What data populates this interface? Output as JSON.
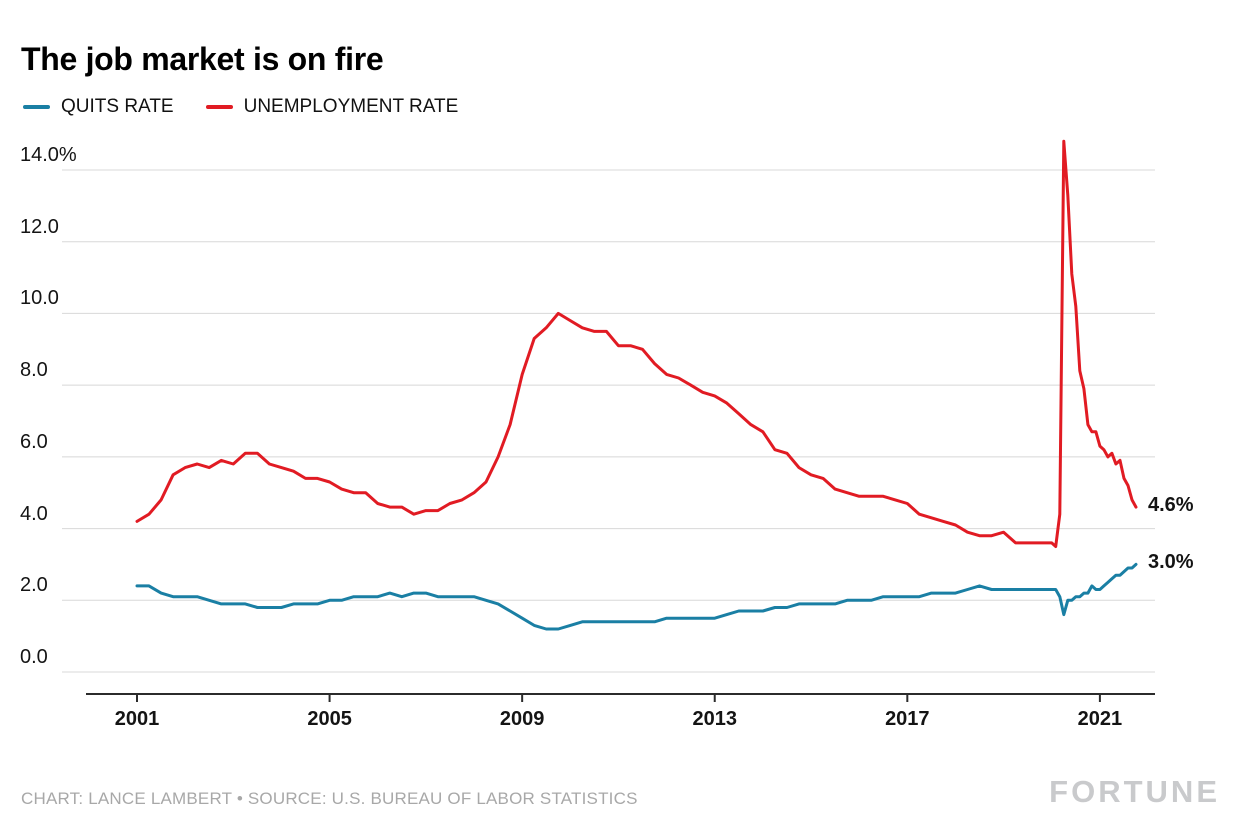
{
  "title": "The job market is on fire",
  "legend": [
    {
      "label": "QUITS RATE",
      "color": "#1a7fa4"
    },
    {
      "label": "UNEMPLOYMENT RATE",
      "color": "#e11b23"
    }
  ],
  "end_labels": {
    "unemployment": "4.6%",
    "quits": "3.0%"
  },
  "footer": {
    "credit": "CHART: LANCE LAMBERT • SOURCE: U.S. BUREAU OF LABOR STATISTICS",
    "brand": "FORTUNE"
  },
  "colors": {
    "grid": "#d8d8d8",
    "axis": "#2b2b2b"
  },
  "chart_data": {
    "type": "line",
    "title": "The job market is on fire",
    "xlabel": "",
    "ylabel": "",
    "grid": true,
    "legend_position": "top",
    "xlim": [
      2001,
      2021.75
    ],
    "ylim": [
      0,
      14.8
    ],
    "y_axis_scale": [
      0,
      14
    ],
    "x": [
      2001,
      2001.25,
      2001.5,
      2001.75,
      2002,
      2002.25,
      2002.5,
      2002.75,
      2003,
      2003.25,
      2003.5,
      2003.75,
      2004,
      2004.25,
      2004.5,
      2004.75,
      2005,
      2005.25,
      2005.5,
      2005.75,
      2006,
      2006.25,
      2006.5,
      2006.75,
      2007,
      2007.25,
      2007.5,
      2007.75,
      2008,
      2008.25,
      2008.5,
      2008.75,
      2009,
      2009.25,
      2009.5,
      2009.75,
      2010,
      2010.25,
      2010.5,
      2010.75,
      2011,
      2011.25,
      2011.5,
      2011.75,
      2012,
      2012.25,
      2012.5,
      2012.75,
      2013,
      2013.25,
      2013.5,
      2013.75,
      2014,
      2014.25,
      2014.5,
      2014.75,
      2015,
      2015.25,
      2015.5,
      2015.75,
      2016,
      2016.25,
      2016.5,
      2016.75,
      2017,
      2017.25,
      2017.5,
      2017.75,
      2018,
      2018.25,
      2018.5,
      2018.75,
      2019,
      2019.25,
      2019.5,
      2019.75,
      2020,
      2020.083,
      2020.167,
      2020.25,
      2020.333,
      2020.417,
      2020.5,
      2020.583,
      2020.667,
      2020.75,
      2020.833,
      2020.917,
      2021,
      2021.083,
      2021.167,
      2021.25,
      2021.333,
      2021.417,
      2021.5,
      2021.583,
      2021.667,
      2021.75
    ],
    "series": [
      {
        "name": "QUITS RATE",
        "color": "#1a7fa4",
        "end_label": "3.0%",
        "values": [
          2.4,
          2.4,
          2.2,
          2.1,
          2.1,
          2.1,
          2.0,
          1.9,
          1.9,
          1.9,
          1.8,
          1.8,
          1.8,
          1.9,
          1.9,
          1.9,
          2.0,
          2.0,
          2.1,
          2.1,
          2.1,
          2.2,
          2.1,
          2.2,
          2.2,
          2.1,
          2.1,
          2.1,
          2.1,
          2.0,
          1.9,
          1.7,
          1.5,
          1.3,
          1.2,
          1.2,
          1.3,
          1.4,
          1.4,
          1.4,
          1.4,
          1.4,
          1.4,
          1.4,
          1.5,
          1.5,
          1.5,
          1.5,
          1.5,
          1.6,
          1.7,
          1.7,
          1.7,
          1.8,
          1.8,
          1.9,
          1.9,
          1.9,
          1.9,
          2.0,
          2.0,
          2.0,
          2.1,
          2.1,
          2.1,
          2.1,
          2.2,
          2.2,
          2.2,
          2.3,
          2.4,
          2.3,
          2.3,
          2.3,
          2.3,
          2.3,
          2.3,
          2.3,
          2.1,
          1.6,
          2.0,
          2.0,
          2.1,
          2.1,
          2.2,
          2.2,
          2.4,
          2.3,
          2.3,
          2.4,
          2.5,
          2.6,
          2.7,
          2.7,
          2.8,
          2.9,
          2.9,
          3.0
        ]
      },
      {
        "name": "UNEMPLOYMENT RATE",
        "color": "#e11b23",
        "end_label": "4.6%",
        "values": [
          4.2,
          4.4,
          4.8,
          5.5,
          5.7,
          5.8,
          5.7,
          5.9,
          5.8,
          6.1,
          6.1,
          5.8,
          5.7,
          5.6,
          5.4,
          5.4,
          5.3,
          5.1,
          5.0,
          5.0,
          4.7,
          4.6,
          4.6,
          4.4,
          4.5,
          4.5,
          4.7,
          4.8,
          5.0,
          5.3,
          6.0,
          6.9,
          8.3,
          9.3,
          9.6,
          10.0,
          9.8,
          9.6,
          9.5,
          9.5,
          9.1,
          9.1,
          9.0,
          8.6,
          8.3,
          8.2,
          8.0,
          7.8,
          7.7,
          7.5,
          7.2,
          6.9,
          6.7,
          6.2,
          6.1,
          5.7,
          5.5,
          5.4,
          5.1,
          5.0,
          4.9,
          4.9,
          4.9,
          4.8,
          4.7,
          4.4,
          4.3,
          4.2,
          4.1,
          3.9,
          3.8,
          3.8,
          3.9,
          3.6,
          3.6,
          3.6,
          3.6,
          3.5,
          4.4,
          14.8,
          13.3,
          11.1,
          10.2,
          8.4,
          7.9,
          6.9,
          6.7,
          6.7,
          6.3,
          6.2,
          6.0,
          6.1,
          5.8,
          5.9,
          5.4,
          5.2,
          4.8,
          4.6
        ]
      }
    ],
    "y_ticks": [
      {
        "value": 14,
        "label": "14.0%"
      },
      {
        "value": 12,
        "label": "12.0"
      },
      {
        "value": 10,
        "label": "10.0"
      },
      {
        "value": 8,
        "label": "8.0"
      },
      {
        "value": 6,
        "label": "6.0"
      },
      {
        "value": 4,
        "label": "4.0"
      },
      {
        "value": 2,
        "label": "2.0"
      },
      {
        "value": 0,
        "label": "0.0"
      }
    ],
    "x_ticks": [
      {
        "value": 2001,
        "label": "2001"
      },
      {
        "value": 2005,
        "label": "2005"
      },
      {
        "value": 2009,
        "label": "2009"
      },
      {
        "value": 2013,
        "label": "2013"
      },
      {
        "value": 2017,
        "label": "2017"
      },
      {
        "value": 2021,
        "label": "2021"
      }
    ]
  }
}
